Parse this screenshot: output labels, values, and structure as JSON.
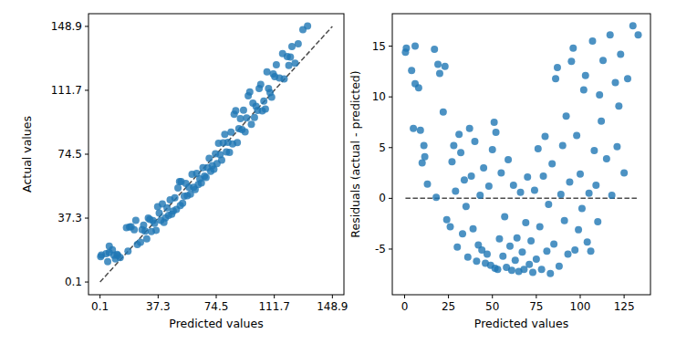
{
  "chart_data": [
    {
      "type": "scatter",
      "x_label": "Predicted values",
      "y_label": "Actual values",
      "color": "#1f77b4",
      "xlim": [
        -7.3,
        156.3
      ],
      "ylim": [
        -7.3,
        156.3
      ],
      "xticks": [
        0.1,
        37.3,
        74.5,
        111.7,
        148.9
      ],
      "yticks": [
        0.1,
        37.3,
        74.5,
        111.7,
        148.9
      ],
      "x": [
        0.5,
        1,
        6,
        5,
        4,
        6,
        9,
        8,
        10,
        11,
        11.5,
        13,
        17,
        18,
        19,
        20,
        22,
        23,
        24,
        26,
        27,
        28,
        29,
        30,
        31,
        32,
        33,
        34,
        35,
        36,
        37,
        38,
        39,
        40,
        41,
        42,
        43,
        44,
        45,
        46,
        47,
        48,
        49,
        50,
        51,
        51.5,
        52,
        53,
        54,
        55,
        56,
        57,
        58,
        59,
        60,
        61,
        62,
        63,
        64,
        65,
        66,
        67,
        68,
        69,
        70,
        71,
        72,
        73,
        74,
        75,
        76,
        77,
        78,
        79,
        80,
        81,
        82,
        83,
        84,
        85,
        86,
        87,
        88,
        89,
        90,
        91,
        92,
        93,
        94,
        95,
        96,
        97,
        98,
        99,
        100,
        101,
        102,
        103,
        104,
        105,
        106,
        107,
        108,
        109,
        110,
        111,
        112,
        113,
        115,
        117,
        118,
        120,
        121,
        122,
        123,
        125,
        127,
        130,
        133
      ],
      "values": [
        14.9,
        15.8,
        21,
        11.9,
        16.6,
        17.3,
        15.7,
        18.9,
        13.5,
        16.2,
        15.6,
        14.4,
        31.7,
        18.1,
        32.2,
        32.3,
        30.5,
        36,
        21.9,
        23.2,
        30.6,
        33.2,
        29.7,
        25.2,
        37.3,
        36.5,
        29.5,
        35.8,
        34.2,
        30.2,
        43.9,
        40.2,
        36,
        45.6,
        34.8,
        37.4,
        43.3,
        38.9,
        48,
        39.6,
        41.5,
        49.2,
        42.4,
        54.8,
        58.5,
        44.6,
        58.5,
        46,
        50,
        57.5,
        50.3,
        55.2,
        51.2,
        62.8,
        55.3,
        53.9,
        63.3,
        56.9,
        60.1,
        57.8,
        66.6,
        61.7,
        61,
        66.6,
        72.1,
        64.5,
        67.8,
        65.7,
        74.8,
        69,
        80.9,
        74.2,
        71,
        81.2,
        86.1,
        75.8,
        81.4,
        75.6,
        87.4,
        80.5,
        97.8,
        99.9,
        81.3,
        89.4,
        95.2,
        88.8,
        100.1,
        87.5,
        95.6,
        108.5,
        110.8,
        91.9,
        104.2,
        95.9,
        102.4,
        100,
        112.7,
        115.1,
        99.7,
        105.5,
        100.8,
        122.5,
        112.7,
        110.3,
        107.7,
        121.2,
        119.6,
        126.6,
        118.9,
        133.1,
        118.3,
        131.4,
        126.1,
        131.1,
        137.2,
        127.5,
        138.8,
        147,
        149.1
      ]
    },
    {
      "type": "scatter",
      "x_label": "Predicted values",
      "y_label": "Residuals (actual - predicted)",
      "color": "#1f77b4",
      "xlim": [
        -7,
        140
      ],
      "ylim": [
        -9.5,
        18.2
      ],
      "xticks": [
        0,
        25,
        50,
        75,
        100,
        125
      ],
      "yticks": [
        -5,
        0,
        5,
        10,
        15
      ],
      "x": [
        0.5,
        1,
        6,
        5,
        4,
        6,
        9,
        8,
        10,
        11,
        11.5,
        13,
        17,
        18,
        19,
        20,
        22,
        23,
        24,
        26,
        27,
        28,
        29,
        30,
        31,
        32,
        33,
        34,
        35,
        36,
        37,
        38,
        39,
        40,
        41,
        42,
        43,
        44,
        45,
        46,
        47,
        48,
        49,
        50,
        51,
        51.5,
        52,
        53,
        54,
        55,
        56,
        57,
        58,
        59,
        60,
        61,
        62,
        63,
        64,
        65,
        66,
        67,
        68,
        69,
        70,
        71,
        72,
        73,
        74,
        75,
        76,
        77,
        78,
        79,
        80,
        81,
        82,
        83,
        84,
        85,
        86,
        87,
        88,
        89,
        90,
        91,
        92,
        93,
        94,
        95,
        96,
        97,
        98,
        99,
        100,
        101,
        102,
        103,
        104,
        105,
        106,
        107,
        108,
        109,
        110,
        111,
        112,
        113,
        115,
        117,
        118,
        120,
        121,
        122,
        123,
        125,
        127,
        130,
        133
      ],
      "values": [
        14.4,
        14.8,
        15,
        6.9,
        12.6,
        11.3,
        6.7,
        10.9,
        3.5,
        5.2,
        4.1,
        1.4,
        14.7,
        0.1,
        13.2,
        12.3,
        8.5,
        13,
        -2.1,
        -2.8,
        3.6,
        5.2,
        0.7,
        -4.8,
        6.3,
        4.5,
        -3.5,
        1.8,
        -0.8,
        -5.8,
        6.9,
        2.2,
        -3,
        5.6,
        -6.2,
        -4.6,
        0.3,
        -5.1,
        3,
        -6.4,
        -5.5,
        1.2,
        -6.6,
        4.8,
        7.5,
        -6.9,
        6.5,
        -7,
        -4,
        2.5,
        -5.7,
        -1.8,
        -6.8,
        3.8,
        -4.7,
        -7.1,
        1.3,
        -6.1,
        -3.9,
        -7.2,
        0.6,
        -5.3,
        -7,
        -2.4,
        2.1,
        -6.5,
        -4.2,
        -7.3,
        0.8,
        -6,
        4.9,
        -2.8,
        -7,
        2.2,
        6.1,
        -5.2,
        -0.6,
        -7.4,
        3.4,
        -4.5,
        11.8,
        12.9,
        -6.7,
        0.4,
        5.2,
        -2.2,
        8.1,
        -5.5,
        1.6,
        13.5,
        14.8,
        -5.1,
        6.2,
        -3.1,
        2.4,
        -1,
        10.7,
        12.1,
        -4.3,
        0.5,
        -5.2,
        15.5,
        4.7,
        1.3,
        -2.3,
        10.2,
        7.6,
        13.6,
        3.9,
        16.1,
        0.3,
        11.4,
        5.1,
        9.1,
        14.2,
        2.5,
        11.8,
        17,
        16.1
      ]
    }
  ]
}
